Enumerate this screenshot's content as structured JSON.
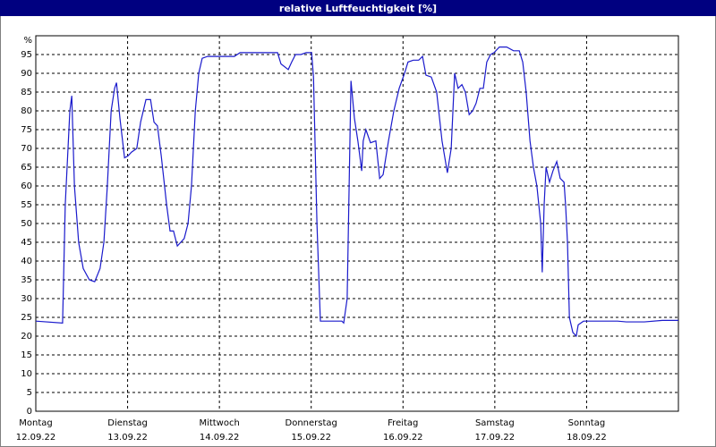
{
  "chart_data": {
    "type": "line",
    "title": "relative Luftfeuchtigkeit [%]",
    "color": "#1a1acc",
    "grid": true,
    "xlim": [
      0,
      168
    ],
    "xticks": [
      {
        "value": 0,
        "label": "Montag",
        "date": "12.09.22"
      },
      {
        "value": 24,
        "label": "Dienstag",
        "date": "13.09.22"
      },
      {
        "value": 48,
        "label": "Mittwoch",
        "date": "14.09.22"
      },
      {
        "value": 72,
        "label": "Donnerstag",
        "date": "15.09.22"
      },
      {
        "value": 96,
        "label": "Freitag",
        "date": "16.09.22"
      },
      {
        "value": 120,
        "label": "Samstag",
        "date": "17.09.22"
      },
      {
        "value": 144,
        "label": "Sonntag",
        "date": "18.09.22"
      }
    ],
    "ylim": [
      0,
      100
    ],
    "yticks": [
      0,
      5,
      10,
      15,
      20,
      25,
      30,
      35,
      40,
      45,
      50,
      55,
      60,
      65,
      70,
      75,
      80,
      85,
      90,
      95,
      {
        "value": 100,
        "label": "%"
      }
    ],
    "x": [
      0,
      7.0,
      7.7,
      8.9,
      9.4,
      10.1,
      11.2,
      12.4,
      14.0,
      15.4,
      16.8,
      17.8,
      18.7,
      19.7,
      20.6,
      21.1,
      22.0,
      23.2,
      24.1,
      25.0,
      26.4,
      27.4,
      28.8,
      30.0,
      30.9,
      31.8,
      32.8,
      34.2,
      35.1,
      36.0,
      37.0,
      37.9,
      38.8,
      39.8,
      40.7,
      41.7,
      42.6,
      43.5,
      44.9,
      46.8,
      49.1,
      51.9,
      53.4,
      56.2,
      60.8,
      63.2,
      64.1,
      66.0,
      66.9,
      67.9,
      69.3,
      70.7,
      72.1,
      72.6,
      73.5,
      74.4,
      77.2,
      80.0,
      80.5,
      81.4,
      82.4,
      83.3,
      84.2,
      85.2,
      85.6,
      86.3,
      87.5,
      88.9,
      89.9,
      90.8,
      92.2,
      93.6,
      95.0,
      96.4,
      97.3,
      98.7,
      100.1,
      101.1,
      102.0,
      103.4,
      104.8,
      106.2,
      107.6,
      108.6,
      109.5,
      110.4,
      111.4,
      112.3,
      113.3,
      114.2,
      115.1,
      116.1,
      117.0,
      117.9,
      118.9,
      119.8,
      121.2,
      123.1,
      124.9,
      126.4,
      127.3,
      128.2,
      129.2,
      130.1,
      131.0,
      132.0,
      132.4,
      132.9,
      133.4,
      134.3,
      135.2,
      136.2,
      137.1,
      138.1,
      138.5,
      139.0,
      139.5,
      140.4,
      141.3,
      141.8,
      143.2,
      145.1,
      152.1,
      154.4,
      159.1,
      163.8,
      168
    ],
    "values": [
      24,
      23.5,
      55,
      80,
      84,
      60,
      45,
      38,
      35,
      34.5,
      38,
      45,
      60,
      80,
      86,
      87.5,
      78,
      67.5,
      68,
      69,
      70,
      77,
      83,
      83,
      77,
      76,
      68,
      55,
      48,
      48,
      44,
      45,
      46,
      50,
      60,
      80,
      90,
      94,
      94.5,
      94.5,
      94.5,
      94.5,
      95.5,
      95.5,
      95.5,
      95.5,
      92.5,
      91,
      93,
      95,
      95,
      95.5,
      95.5,
      89,
      50,
      24,
      24,
      24,
      23.5,
      30,
      88,
      78,
      72,
      64,
      72,
      75,
      71.5,
      72,
      62,
      63,
      72,
      80,
      86,
      90,
      93,
      93.5,
      93.5,
      94.5,
      89.5,
      89,
      85,
      72,
      63.5,
      70,
      90,
      86,
      87,
      85,
      79,
      80,
      82,
      86,
      86,
      93,
      95,
      95.5,
      97,
      97,
      96,
      96,
      93,
      85,
      72,
      65,
      60,
      50,
      37,
      55,
      65,
      61,
      64,
      66.5,
      62,
      61,
      55,
      45,
      25,
      21,
      20,
      23,
      24,
      24,
      24,
      23.8,
      23.8,
      24.2,
      24.2
    ]
  }
}
